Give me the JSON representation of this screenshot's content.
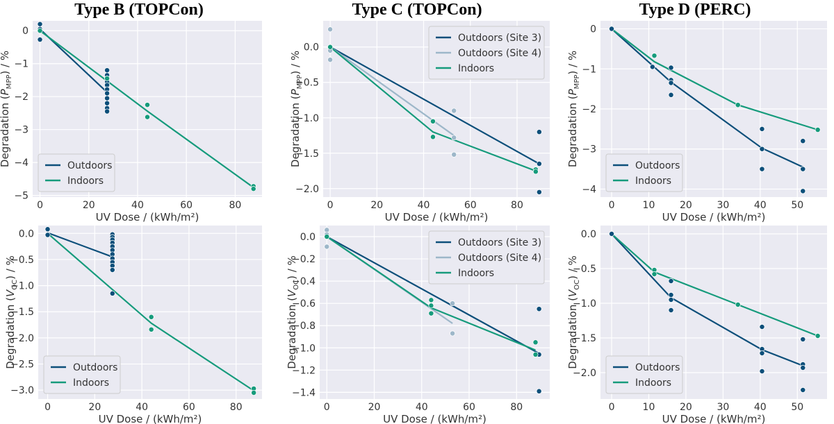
{
  "figure": {
    "column_titles": [
      "Type B (TOPCon)",
      "Type C (TOPCon)",
      "Type D (PERC)"
    ]
  },
  "colors": {
    "outdoors": "#0d4f7a",
    "outdoors_site4": "#9db7c9",
    "indoors": "#169b7c",
    "panel_background": "#eaeaf2",
    "grid": "#ffffff"
  },
  "chart_data": [
    {
      "id": "b_pmpp",
      "type": "scatter",
      "column": "Type B (TOPCon)",
      "xlabel": "UV Dose / (kWh/m²)",
      "ylabel": "Degradation (P_MPP) / %",
      "ylabel_main": "Degradation (",
      "ylabel_symbol": "P",
      "ylabel_sub": "MPP",
      "ylabel_tail": ") / %",
      "xlim": [
        -3,
        91
      ],
      "ylim": [
        -5.05,
        0.3
      ],
      "xticks": [
        0,
        20,
        40,
        60,
        80
      ],
      "yticks": [
        0,
        -1,
        -2,
        -3,
        -4,
        -5
      ],
      "ytick_labels": [
        "0",
        "−1",
        "−2",
        "−3",
        "−4",
        "−5"
      ],
      "legend": {
        "position": "lower-left"
      },
      "series": [
        {
          "name": "Outdoors",
          "color": "#0d4f7a",
          "points": [
            [
              0,
              0.2
            ],
            [
              0,
              0.05
            ],
            [
              0,
              -0.27
            ],
            [
              27.5,
              -1.2
            ],
            [
              27.5,
              -1.35
            ],
            [
              27.5,
              -1.45
            ],
            [
              27.5,
              -1.55
            ],
            [
              27.5,
              -1.65
            ],
            [
              27.5,
              -1.78
            ],
            [
              27.5,
              -1.9
            ],
            [
              27.5,
              -2.05
            ],
            [
              27.5,
              -2.2
            ],
            [
              27.5,
              -2.35
            ],
            [
              27.5,
              -2.45
            ]
          ],
          "line": [
            [
              0,
              0.05
            ],
            [
              27.5,
              -1.87
            ]
          ]
        },
        {
          "name": "Indoors",
          "color": "#169b7c",
          "points": [
            [
              0,
              0.0
            ],
            [
              27.5,
              -1.45
            ],
            [
              44,
              -2.25
            ],
            [
              44,
              -2.62
            ],
            [
              87.5,
              -4.72
            ],
            [
              87.5,
              -4.8
            ]
          ],
          "line": [
            [
              0,
              0.0
            ],
            [
              44,
              -2.44
            ],
            [
              87.5,
              -4.76
            ]
          ]
        }
      ]
    },
    {
      "id": "c_pmpp",
      "type": "scatter",
      "column": "Type C (TOPCon)",
      "xlabel": "UV Dose / (kWh/m²)",
      "ylabel": "Degradation (P_MPP) / %",
      "ylabel_main": "Degradation (",
      "ylabel_symbol": "P",
      "ylabel_sub": "MPP",
      "ylabel_tail": ") / %",
      "xlim": [
        -3,
        94
      ],
      "ylim": [
        -2.12,
        0.37
      ],
      "xticks": [
        0,
        20,
        40,
        60,
        80
      ],
      "yticks": [
        0,
        -0.5,
        -1,
        -1.5,
        -2
      ],
      "ytick_labels": [
        "0.0",
        "−0.5",
        "−1.0",
        "−1.5",
        "−2.0"
      ],
      "legend": {
        "position": "upper-right"
      },
      "series": [
        {
          "name": "Outdoors (Site 3)",
          "color": "#0d4f7a",
          "points": [
            [
              89.5,
              -1.2
            ],
            [
              89.5,
              -1.65
            ],
            [
              89.5,
              -2.05
            ]
          ],
          "line": [
            [
              0,
              0.0
            ],
            [
              89.5,
              -1.65
            ]
          ]
        },
        {
          "name": "Outdoors (Site 4)",
          "color": "#9db7c9",
          "points": [
            [
              0,
              0.25
            ],
            [
              0,
              -0.05
            ],
            [
              0,
              -0.18
            ],
            [
              44,
              -1.05
            ],
            [
              53,
              -0.9
            ],
            [
              53,
              -1.28
            ],
            [
              53,
              -1.52
            ]
          ],
          "line": [
            [
              0,
              0.0
            ],
            [
              53,
              -1.25
            ]
          ]
        },
        {
          "name": "Indoors",
          "color": "#169b7c",
          "points": [
            [
              0,
              0.0
            ],
            [
              44,
              -1.05
            ],
            [
              44,
              -1.27
            ],
            [
              88,
              -1.73
            ],
            [
              88,
              -1.76
            ]
          ],
          "line": [
            [
              0,
              0.0
            ],
            [
              44,
              -1.2
            ],
            [
              88,
              -1.75
            ]
          ]
        }
      ]
    },
    {
      "id": "d_pmpp",
      "type": "scatter",
      "column": "Type D (PERC)",
      "xlabel": "UV Dose / (kWh/m²)",
      "ylabel": "Degradation (P_MPP) / %",
      "ylabel_main": "Degradation (",
      "ylabel_symbol": "P",
      "ylabel_sub": "MPP",
      "ylabel_tail": ") / %",
      "xlim": [
        -3,
        58
      ],
      "ylim": [
        -4.2,
        0.2
      ],
      "xticks": [
        0,
        10,
        20,
        30,
        40,
        50
      ],
      "yticks": [
        0,
        -1,
        -2,
        -3,
        -4
      ],
      "ytick_labels": [
        "0",
        "−1",
        "−2",
        "−3",
        "−4"
      ],
      "legend": {
        "position": "lower-left"
      },
      "series": [
        {
          "name": "Outdoors",
          "color": "#0d4f7a",
          "points": [
            [
              0,
              0.0
            ],
            [
              11,
              -0.95
            ],
            [
              16,
              -0.97
            ],
            [
              16,
              -1.28
            ],
            [
              16,
              -1.35
            ],
            [
              16,
              -1.65
            ],
            [
              40.5,
              -2.5
            ],
            [
              40.5,
              -3.0
            ],
            [
              40.5,
              -3.5
            ],
            [
              51.5,
              -2.8
            ],
            [
              51.5,
              -3.5
            ],
            [
              51.5,
              -4.05
            ]
          ],
          "line": [
            [
              0,
              0.0
            ],
            [
              16,
              -1.33
            ],
            [
              40.5,
              -2.98
            ],
            [
              51.5,
              -3.45
            ]
          ]
        },
        {
          "name": "Indoors",
          "color": "#169b7c",
          "points": [
            [
              11.5,
              -0.67
            ],
            [
              34,
              -1.9
            ],
            [
              55.5,
              -2.52
            ]
          ],
          "line": [
            [
              0,
              0.0
            ],
            [
              11.5,
              -0.82
            ],
            [
              34,
              -1.9
            ],
            [
              55.5,
              -2.52
            ]
          ]
        }
      ]
    },
    {
      "id": "b_voc",
      "type": "scatter",
      "column": "Type B (TOPCon)",
      "xlabel": "UV Dose / (kWh/m²)",
      "ylabel": "Degradation (V_OC) / %",
      "ylabel_main": "Degradation (",
      "ylabel_symbol": "V",
      "ylabel_sub": "OC",
      "ylabel_tail": ") / %",
      "xlim": [
        -4,
        91
      ],
      "ylim": [
        -3.17,
        0.15
      ],
      "xticks": [
        0,
        20,
        40,
        60,
        80
      ],
      "yticks": [
        0,
        -0.5,
        -1,
        -1.5,
        -2,
        -2.5,
        -3
      ],
      "ytick_labels": [
        "0.0",
        "−0.5",
        "−1.0",
        "−1.5",
        "−2.0",
        "−2.5",
        "−3.0"
      ],
      "legend": {
        "position": "lower-left"
      },
      "series": [
        {
          "name": "Outdoors",
          "color": "#0d4f7a",
          "points": [
            [
              0,
              0.08
            ],
            [
              0,
              -0.03
            ],
            [
              27.5,
              -0.02
            ],
            [
              27.5,
              -0.07
            ],
            [
              27.5,
              -0.12
            ],
            [
              27.5,
              -0.18
            ],
            [
              27.5,
              -0.25
            ],
            [
              27.5,
              -0.32
            ],
            [
              27.5,
              -0.4
            ],
            [
              27.5,
              -0.48
            ],
            [
              27.5,
              -0.55
            ],
            [
              27.5,
              -0.62
            ],
            [
              27.5,
              -0.7
            ],
            [
              27.5,
              -1.15
            ]
          ],
          "line": [
            [
              0,
              0.01
            ],
            [
              27.5,
              -0.45
            ]
          ]
        },
        {
          "name": "Indoors",
          "color": "#169b7c",
          "points": [
            [
              44,
              -1.6
            ],
            [
              44,
              -1.84
            ],
            [
              87.5,
              -2.97
            ],
            [
              87.5,
              -3.05
            ]
          ],
          "line": [
            [
              0,
              0.0
            ],
            [
              44,
              -1.72
            ],
            [
              87.5,
              -3.01
            ]
          ]
        }
      ]
    },
    {
      "id": "c_voc",
      "type": "scatter",
      "column": "Type C (TOPCon)",
      "xlabel": "UV Dose / (kWh/m²)",
      "ylabel": "Degradation (V_OC) / %",
      "ylabel_main": "Degradation (",
      "ylabel_symbol": "V",
      "ylabel_sub": "OC",
      "ylabel_tail": ") / %",
      "xlim": [
        -3,
        94
      ],
      "ylim": [
        -1.46,
        0.1
      ],
      "xticks": [
        0,
        20,
        40,
        60,
        80
      ],
      "yticks": [
        0,
        -0.2,
        -0.4,
        -0.6,
        -0.8,
        -1,
        -1.2,
        -1.4
      ],
      "ytick_labels": [
        "0.0",
        "−0.2",
        "−0.4",
        "−0.6",
        "−0.8",
        "−1.0",
        "−1.2",
        "−1.4"
      ],
      "legend": {
        "position": "upper-right"
      },
      "series": [
        {
          "name": "Outdoors (Site 3)",
          "color": "#0d4f7a",
          "points": [
            [
              89.5,
              -0.65
            ],
            [
              89.5,
              -1.06
            ],
            [
              89.5,
              -1.39
            ]
          ],
          "line": [
            [
              0,
              0.0
            ],
            [
              89.5,
              -1.05
            ]
          ]
        },
        {
          "name": "Outdoors (Site 4)",
          "color": "#9db7c9",
          "points": [
            [
              0,
              0.06
            ],
            [
              0,
              0.02
            ],
            [
              0,
              -0.09
            ],
            [
              53,
              -0.6
            ],
            [
              53,
              -0.87
            ]
          ],
          "line": [
            [
              0,
              0.0
            ],
            [
              53,
              -0.78
            ]
          ]
        },
        {
          "name": "Indoors",
          "color": "#169b7c",
          "points": [
            [
              0,
              0.0
            ],
            [
              44,
              -0.57
            ],
            [
              44,
              -0.62
            ],
            [
              44,
              -0.69
            ],
            [
              88,
              -0.95
            ],
            [
              88,
              -1.06
            ]
          ],
          "line": [
            [
              0,
              0.0
            ],
            [
              44,
              -0.64
            ],
            [
              88,
              -1.02
            ]
          ]
        }
      ]
    },
    {
      "id": "d_voc",
      "type": "scatter",
      "column": "Type D (PERC)",
      "xlabel": "UV Dose / (kWh/m²)",
      "ylabel": "Degradation (V_OC) / %",
      "ylabel_main": "Degradation (",
      "ylabel_symbol": "V",
      "ylabel_sub": "OC",
      "ylabel_tail": ") / %",
      "xlim": [
        -3,
        58
      ],
      "ylim": [
        -2.38,
        0.12
      ],
      "xticks": [
        0,
        10,
        20,
        30,
        40,
        50
      ],
      "yticks": [
        0,
        -0.5,
        -1,
        -1.5,
        -2
      ],
      "ytick_labels": [
        "0.0",
        "−0.5",
        "−1.0",
        "−1.5",
        "−2.0"
      ],
      "legend": {
        "position": "lower-left"
      },
      "series": [
        {
          "name": "Outdoors",
          "color": "#0d4f7a",
          "points": [
            [
              0,
              0.0
            ],
            [
              16,
              -0.68
            ],
            [
              16,
              -0.88
            ],
            [
              16,
              -0.95
            ],
            [
              16,
              -1.1
            ],
            [
              40.5,
              -1.34
            ],
            [
              40.5,
              -1.66
            ],
            [
              40.5,
              -1.72
            ],
            [
              40.5,
              -1.98
            ],
            [
              51.5,
              -1.52
            ],
            [
              51.5,
              -1.88
            ],
            [
              51.5,
              -1.93
            ],
            [
              51.5,
              -2.25
            ]
          ],
          "line": [
            [
              0,
              0.0
            ],
            [
              16,
              -0.92
            ],
            [
              40.5,
              -1.67
            ],
            [
              51.5,
              -1.9
            ]
          ]
        },
        {
          "name": "Indoors",
          "color": "#169b7c",
          "points": [
            [
              11.5,
              -0.52
            ],
            [
              11.5,
              -0.58
            ],
            [
              34,
              -1.02
            ],
            [
              55.5,
              -1.47
            ]
          ],
          "line": [
            [
              0,
              0.0
            ],
            [
              11.5,
              -0.55
            ],
            [
              34,
              -1.02
            ],
            [
              55.5,
              -1.47
            ]
          ]
        }
      ]
    }
  ]
}
